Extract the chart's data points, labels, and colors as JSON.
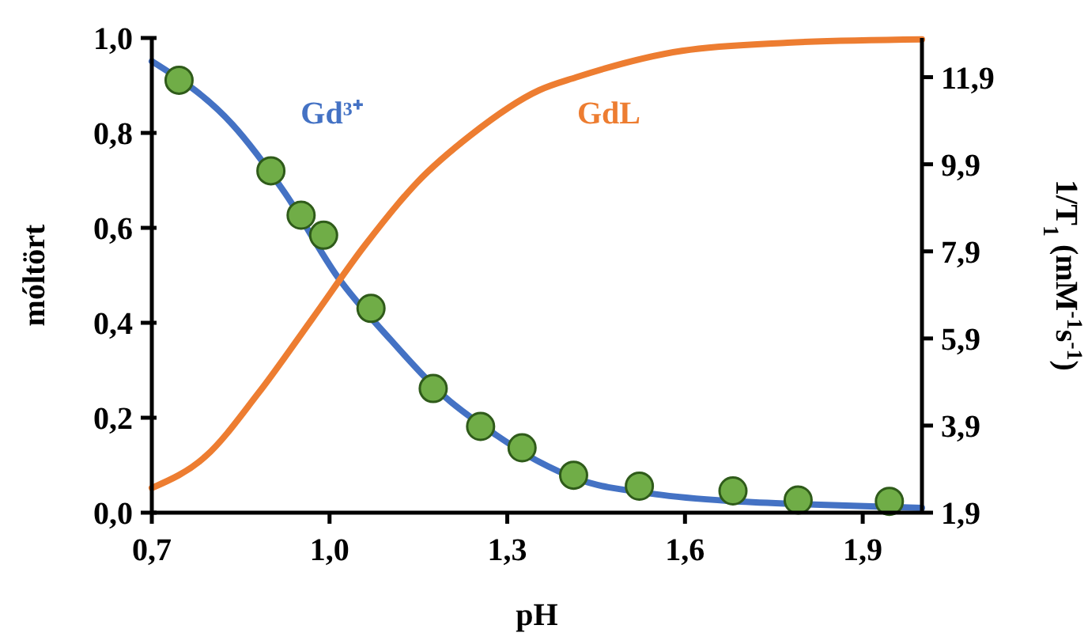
{
  "chart_data": {
    "type": "line",
    "xlabel": "pH",
    "ylabel": "móltört",
    "y2label": "1/T$_{1}$ (mM$^{-1}$s$^{-1}$)",
    "xlim": [
      0.7,
      2.0
    ],
    "xticks": [
      {
        "value": 0.7,
        "label": "0,7"
      },
      {
        "value": 1.0,
        "label": "1,0"
      },
      {
        "value": 1.3,
        "label": "1,3"
      },
      {
        "value": 1.6,
        "label": "1,6"
      },
      {
        "value": 1.9,
        "label": "1,9"
      }
    ],
    "ylim": [
      0,
      1
    ],
    "yticks": [
      {
        "value": 0,
        "label": "0,0"
      },
      {
        "value": 0.2,
        "label": "0,2"
      },
      {
        "value": 0.4,
        "label": "0,4"
      },
      {
        "value": 0.6,
        "label": "0,6"
      },
      {
        "value": 0.8,
        "label": "0,8"
      },
      {
        "value": 1.0,
        "label": "1,0"
      }
    ],
    "y2lim": [
      1.9,
      12.8
    ],
    "y2ticks": [
      {
        "value": 1.9,
        "label": "1,9"
      },
      {
        "value": 3.9,
        "label": "3,9"
      },
      {
        "value": 5.9,
        "label": "5,9"
      },
      {
        "value": 7.9,
        "label": "7,9"
      },
      {
        "value": 9.9,
        "label": "9,9"
      },
      {
        "value": 11.9,
        "label": "11,9"
      }
    ],
    "grid": false,
    "line_style": "solid",
    "series": [
      {
        "name": "Gd³⁺",
        "color": "#4472c4",
        "x": [
          0.7,
          0.836,
          0.925,
          1.014,
          1.104,
          1.193,
          1.282,
          1.354,
          1.416,
          1.55,
          1.684,
          1.818,
          2.0
        ],
        "values": [
          0.951,
          0.818,
          0.673,
          0.496,
          0.363,
          0.246,
          0.163,
          0.107,
          0.072,
          0.039,
          0.024,
          0.017,
          0.01
        ]
      },
      {
        "name": "GdL",
        "color": "#ed7d31",
        "x": [
          0.7,
          0.791,
          0.88,
          0.97,
          1.059,
          1.148,
          1.238,
          1.354,
          1.416,
          1.595,
          1.773,
          2.0
        ],
        "values": [
          0.052,
          0.119,
          0.252,
          0.407,
          0.562,
          0.696,
          0.795,
          0.89,
          0.917,
          0.973,
          0.99,
          0.997
        ]
      },
      {
        "type": "scatter",
        "axis": "y2",
        "marker": "circle",
        "color": "#70ad47",
        "x": [
          0.746,
          0.901,
          0.952,
          0.99,
          1.07,
          1.175,
          1.255,
          1.325,
          1.412,
          1.523,
          1.681,
          1.791,
          1.945
        ],
        "values": [
          11.83,
          9.75,
          8.73,
          8.27,
          6.59,
          4.75,
          3.88,
          3.39,
          2.76,
          2.51,
          2.4,
          2.19,
          2.16
        ]
      }
    ]
  }
}
